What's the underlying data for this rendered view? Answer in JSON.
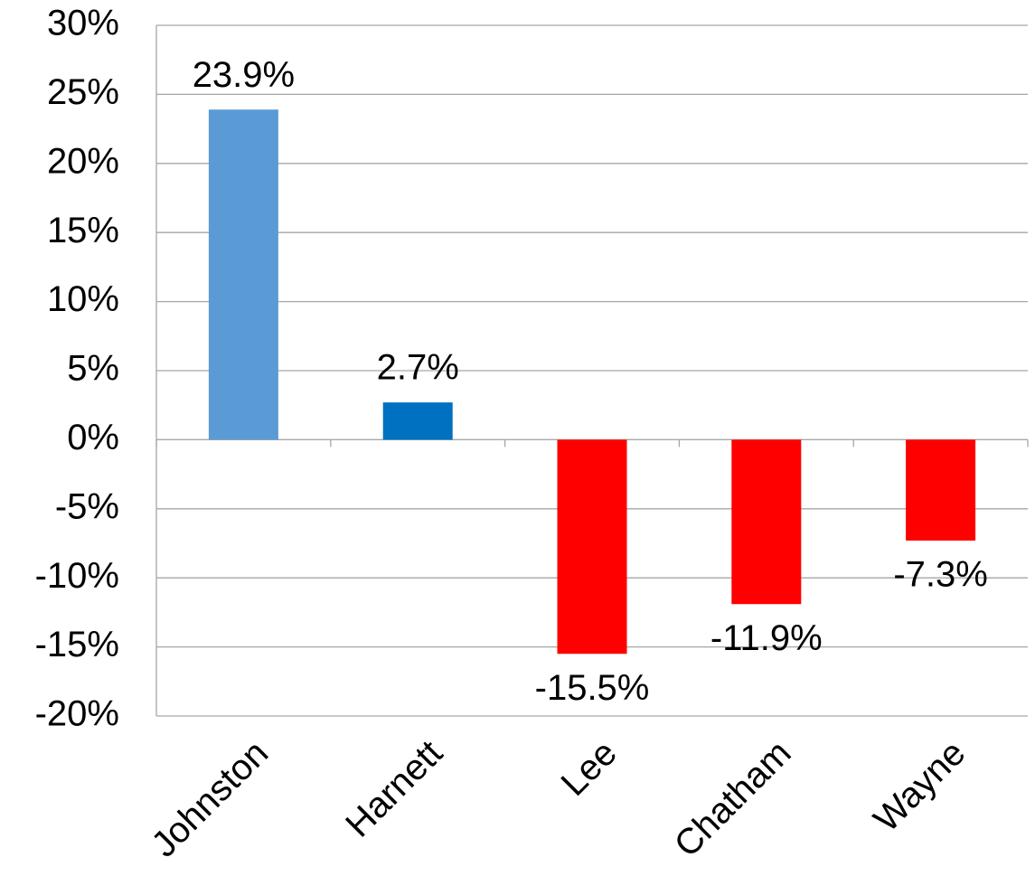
{
  "chart_data": {
    "type": "bar",
    "categories": [
      "Johnston",
      "Harnett",
      "Lee",
      "Chatham",
      "Wayne"
    ],
    "values": [
      23.9,
      2.7,
      -15.5,
      -11.9,
      -7.3
    ],
    "value_labels": [
      "23.9%",
      "2.7%",
      "-15.5%",
      "-11.9%",
      "-7.3%"
    ],
    "colors": [
      "#5b9bd5",
      "#0070c0",
      "#ff0000",
      "#ff0000",
      "#ff0000"
    ],
    "ylim": [
      -20,
      30
    ],
    "yticks": [
      {
        "value": 30,
        "label": "30%"
      },
      {
        "value": 25,
        "label": "25%"
      },
      {
        "value": 20,
        "label": "20%"
      },
      {
        "value": 15,
        "label": "15%"
      },
      {
        "value": 10,
        "label": "10%"
      },
      {
        "value": 5,
        "label": "5%"
      },
      {
        "value": 0,
        "label": "0%"
      },
      {
        "value": -5,
        "label": "-5%"
      },
      {
        "value": -10,
        "label": "-10%"
      },
      {
        "value": -15,
        "label": "-15%"
      },
      {
        "value": -20,
        "label": "-20%"
      }
    ],
    "grid": true
  }
}
